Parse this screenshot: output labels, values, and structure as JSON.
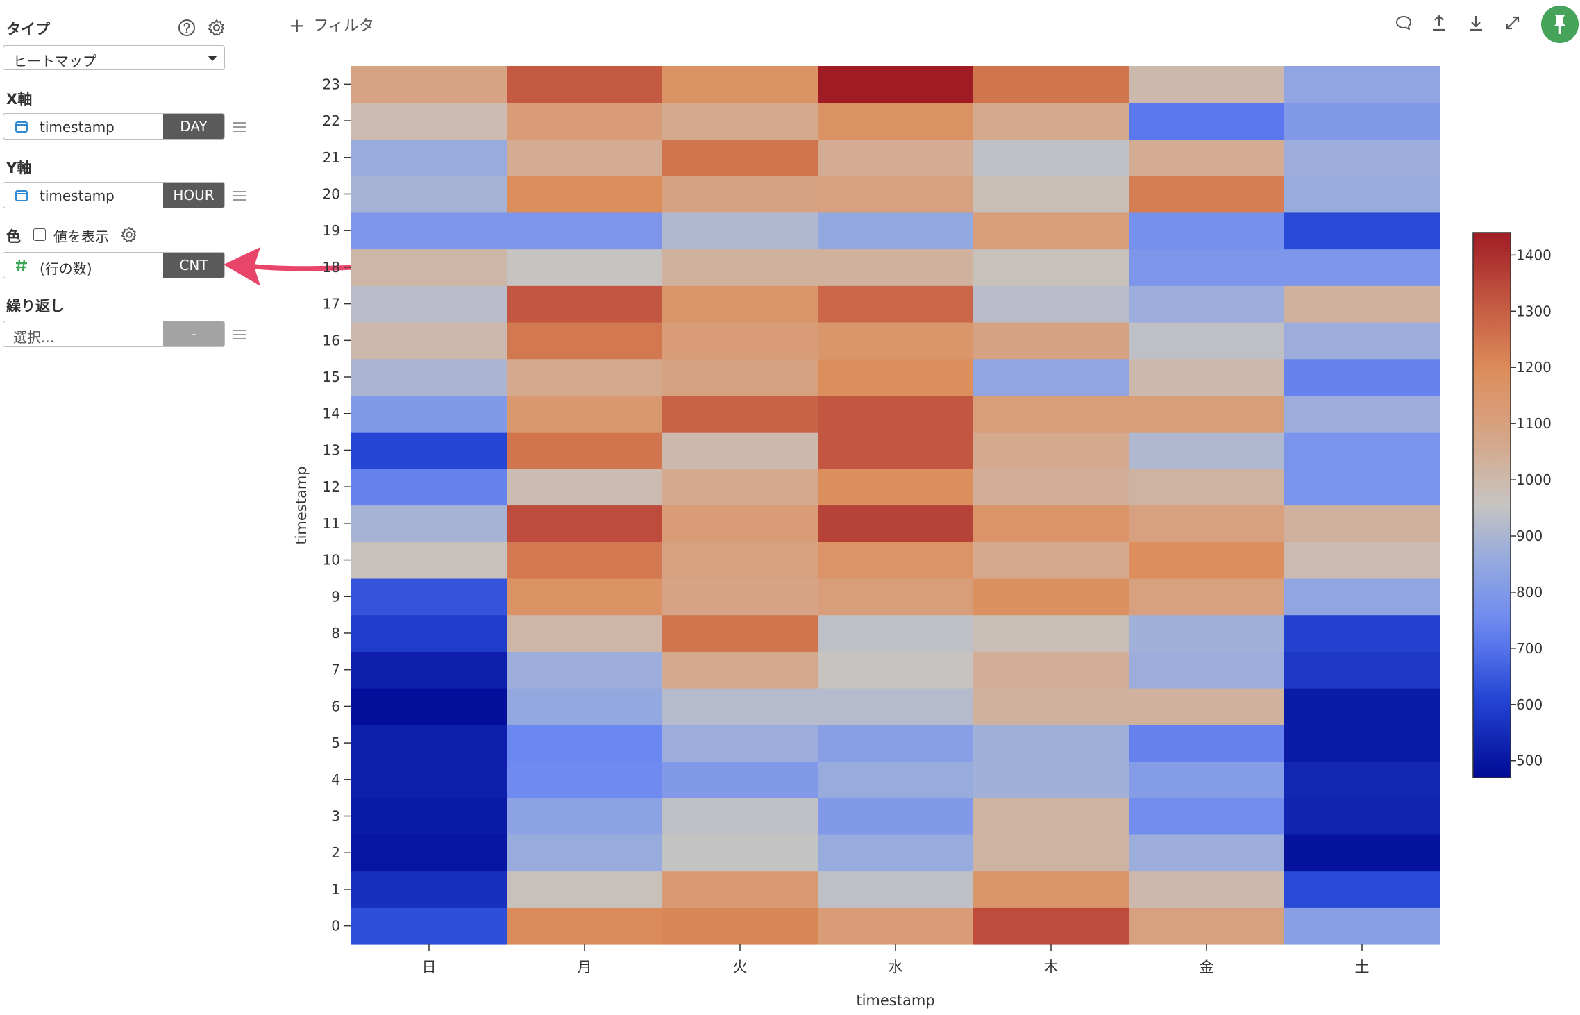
{
  "sidebar": {
    "type_section": {
      "title": "タイプ",
      "help_icon": "help-circle-icon",
      "settings_icon": "gear-icon",
      "chart_type_value": "ヒートマップ"
    },
    "x_axis": {
      "title": "X軸",
      "field_icon": "calendar-icon",
      "field_name": "timestamp",
      "aggregation": "DAY"
    },
    "y_axis": {
      "title": "Y軸",
      "field_icon": "calendar-icon",
      "field_name": "timestamp",
      "aggregation": "HOUR"
    },
    "color": {
      "title": "色",
      "show_values_label": "値を表示",
      "show_values_checked": false,
      "settings_icon": "gear-icon",
      "field_icon": "hash-icon",
      "field_name": "(行の数)",
      "aggregation": "CNT"
    },
    "repeat": {
      "title": "繰り返し",
      "placeholder": "選択...",
      "aggregation": "-"
    }
  },
  "toolbar": {
    "filter_label": "フィルタ",
    "icons": [
      "comment-icon",
      "upload-icon",
      "download-icon",
      "expand-icon",
      "pin-icon"
    ],
    "pin_color": "#45a45a"
  },
  "annotation": {
    "type": "arrow",
    "color": "#e8456b",
    "points_to": "color-aggregation-cnt"
  },
  "chart_data": {
    "type": "heatmap",
    "title": "",
    "xlabel": "timestamp",
    "ylabel": "timestamp",
    "x_categories": [
      "日",
      "月",
      "火",
      "水",
      "木",
      "金",
      "土"
    ],
    "y_categories": [
      "0",
      "1",
      "2",
      "3",
      "4",
      "5",
      "6",
      "7",
      "8",
      "9",
      "10",
      "11",
      "12",
      "13",
      "14",
      "15",
      "16",
      "17",
      "18",
      "19",
      "20",
      "21",
      "22",
      "23"
    ],
    "colorscale": "coolwarm",
    "color_range": [
      470,
      1440
    ],
    "colorbar_ticks": [
      500,
      600,
      700,
      800,
      900,
      1000,
      1100,
      1200,
      1300,
      1400
    ],
    "values": [
      [
        630,
        1200,
        1210,
        1120,
        1340,
        1100,
        820
      ],
      [
        560,
        970,
        1130,
        940,
        1150,
        1000,
        620
      ],
      [
        500,
        860,
        950,
        860,
        1020,
        870,
        490
      ],
      [
        510,
        830,
        940,
        800,
        1020,
        760,
        530
      ],
      [
        520,
        750,
        800,
        860,
        880,
        810,
        540
      ],
      [
        520,
        740,
        870,
        820,
        880,
        730,
        510
      ],
      [
        480,
        850,
        920,
        920,
        1030,
        1030,
        510
      ],
      [
        520,
        870,
        1060,
        960,
        1040,
        870,
        580
      ],
      [
        590,
        1010,
        1250,
        940,
        980,
        880,
        600
      ],
      [
        640,
        1170,
        1080,
        1110,
        1180,
        1100,
        840
      ],
      [
        970,
        1240,
        1100,
        1160,
        1060,
        1190,
        990
      ],
      [
        890,
        1340,
        1120,
        1360,
        1160,
        1100,
        1030
      ],
      [
        730,
        990,
        1060,
        1190,
        1040,
        1020,
        780
      ],
      [
        610,
        1250,
        1000,
        1320,
        1060,
        910,
        780
      ],
      [
        800,
        1140,
        1290,
        1320,
        1110,
        1110,
        870
      ],
      [
        900,
        1060,
        1090,
        1190,
        840,
        1000,
        730
      ],
      [
        1000,
        1240,
        1120,
        1150,
        1090,
        940,
        870
      ],
      [
        930,
        1320,
        1150,
        1280,
        930,
        870,
        1030
      ],
      [
        1010,
        960,
        1030,
        1030,
        970,
        790,
        790
      ],
      [
        790,
        790,
        910,
        850,
        1110,
        770,
        620
      ],
      [
        890,
        1190,
        1090,
        1100,
        980,
        1230,
        860
      ],
      [
        860,
        1050,
        1250,
        1050,
        940,
        1050,
        870
      ],
      [
        990,
        1120,
        1060,
        1170,
        1060,
        710,
        800
      ],
      [
        1080,
        1310,
        1170,
        1440,
        1250,
        1000,
        840
      ]
    ]
  }
}
